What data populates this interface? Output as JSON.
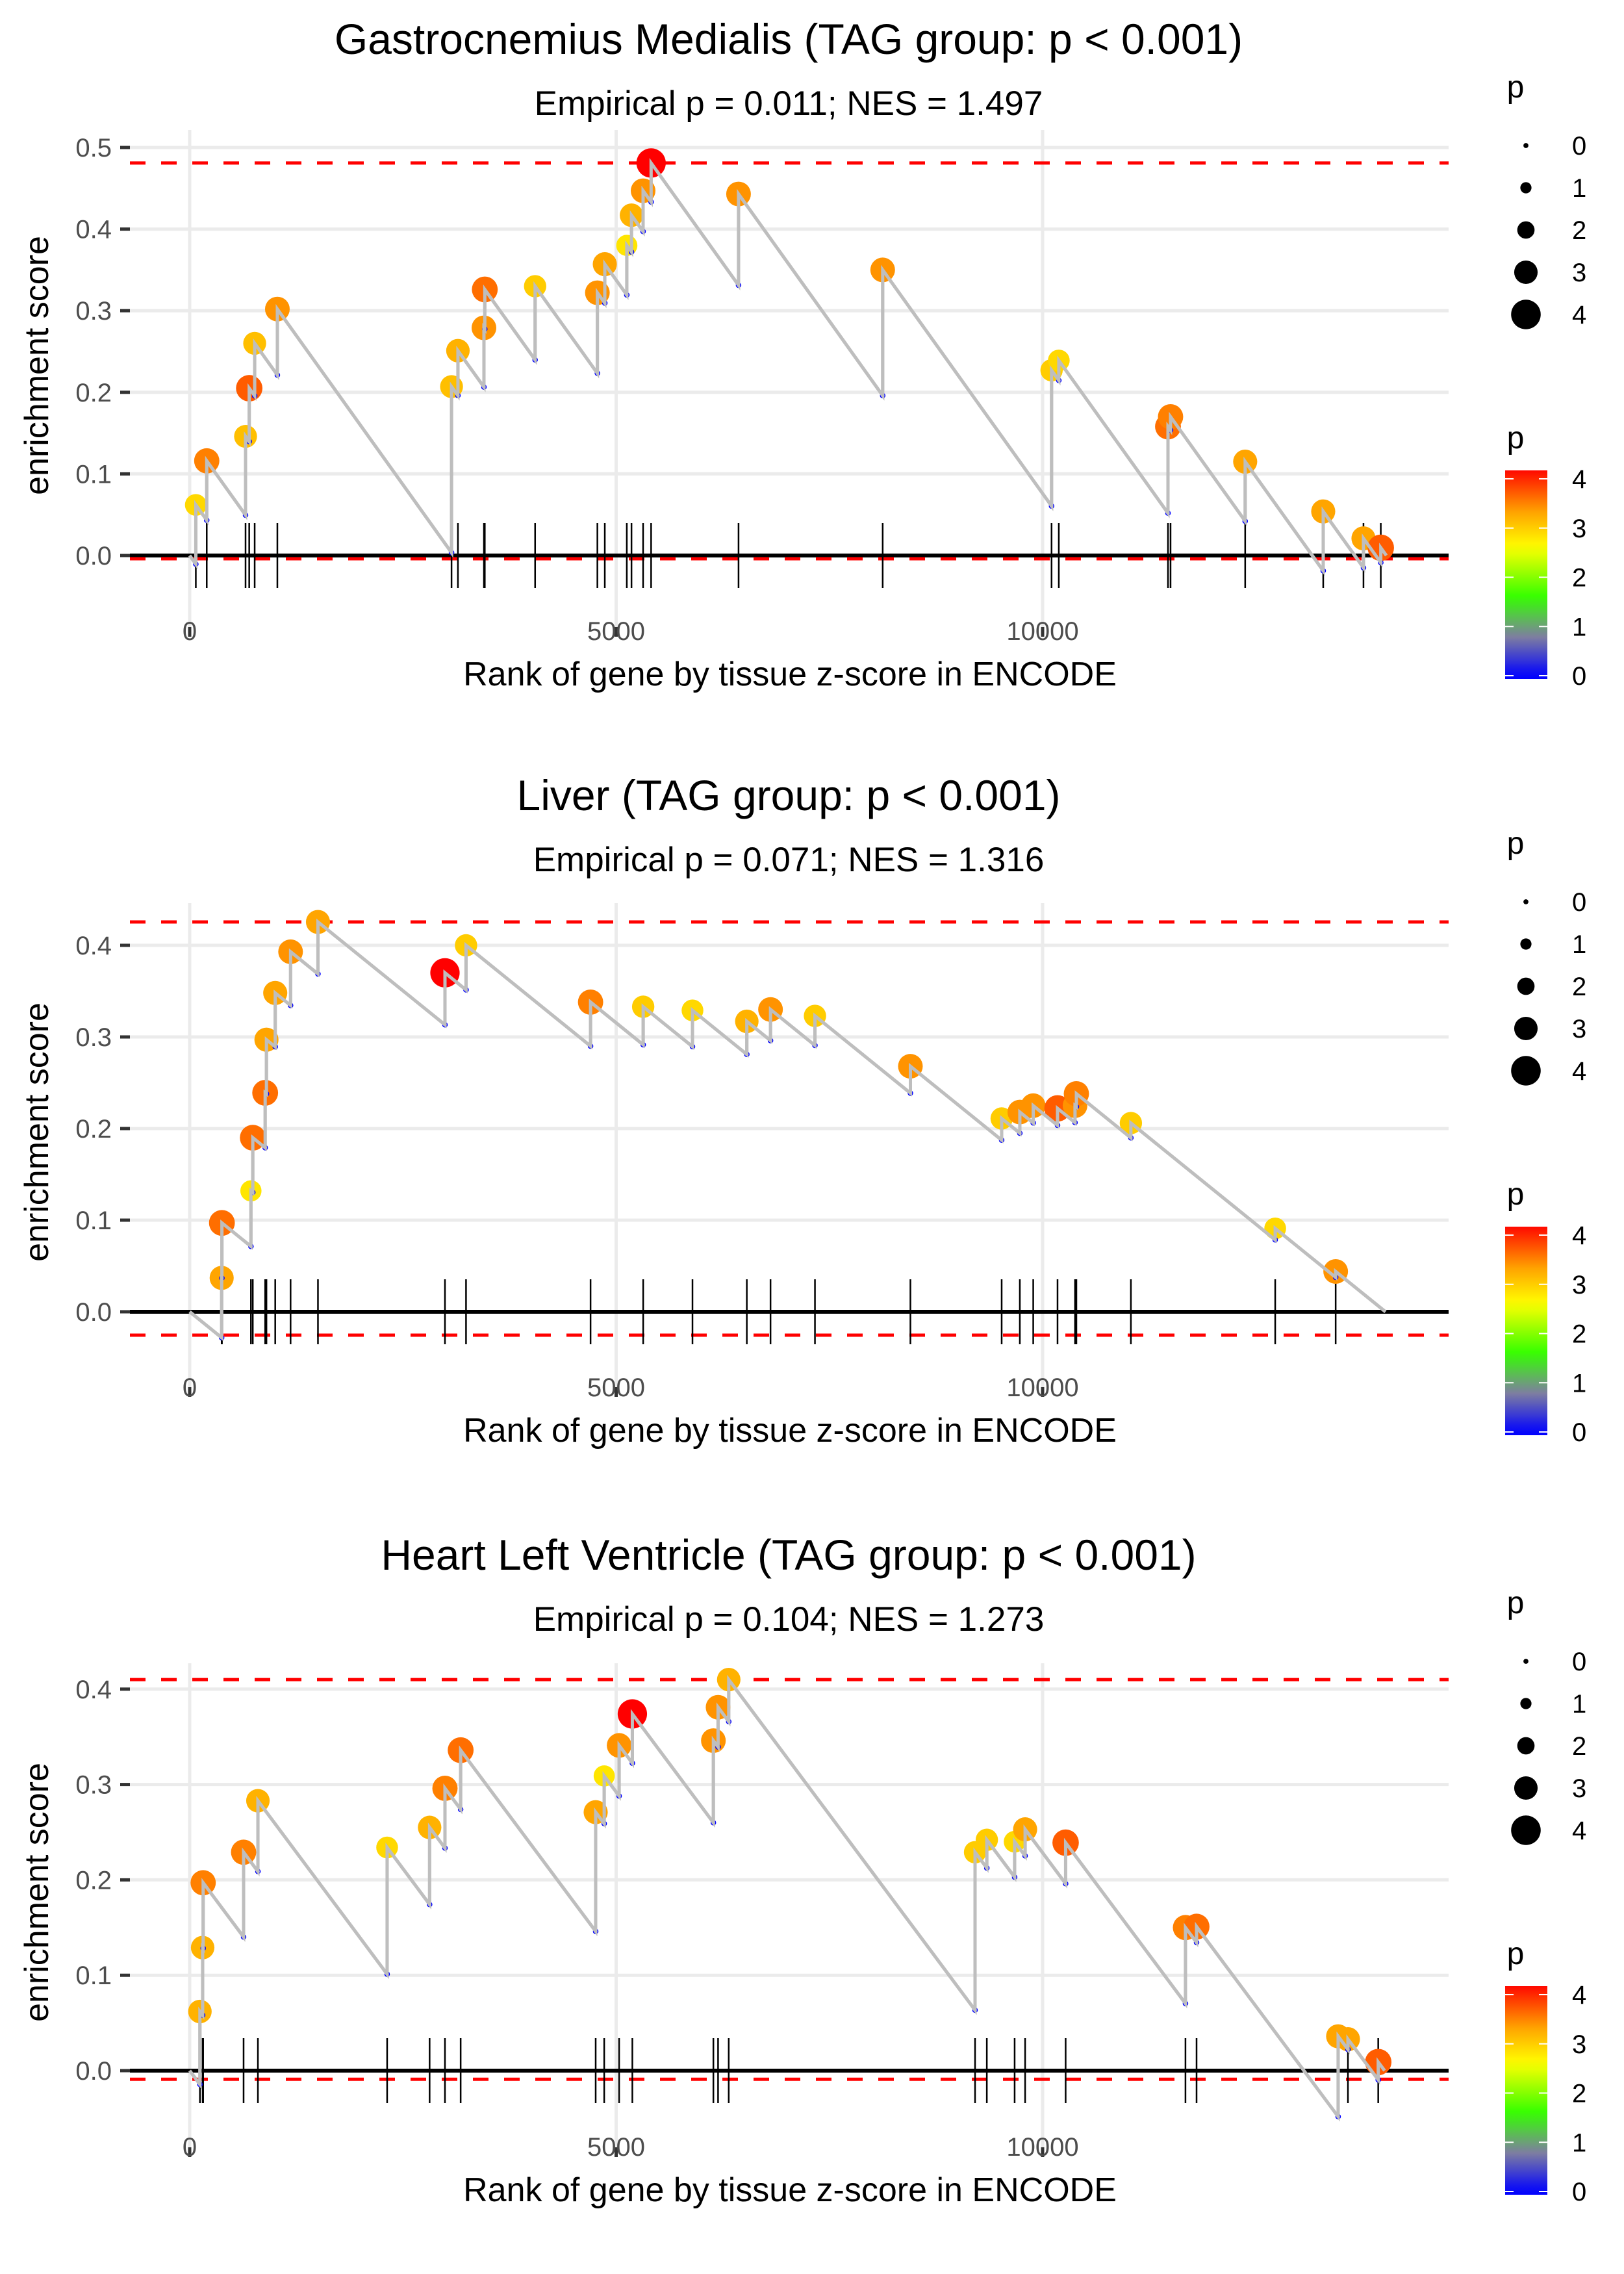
{
  "chart_data": [
    {
      "type": "scatter",
      "title": "Gastrocnemius Medialis (TAG group: p < 0.001)",
      "subtitle": "Empirical p = 0.011; NES = 1.497",
      "xlabel": "Rank of gene by tissue z-score in ENCODE",
      "ylabel": "enrichment score",
      "xlim": [
        -650,
        14700
      ],
      "ylim": [
        -0.05,
        0.5
      ],
      "xticks": [
        0,
        5000,
        10000
      ],
      "xtick_labels": [
        "0",
        "5000",
        "10000"
      ],
      "yticks": [
        0.0,
        0.1,
        0.2,
        0.3,
        0.4,
        0.5
      ],
      "ytick_labels": [
        "0.0",
        "0.1",
        "0.2",
        "0.3",
        "0.4",
        "0.5"
      ],
      "grid": true,
      "n_genes": 14030,
      "max_es": 0.481,
      "min_es": -0.004,
      "points": [
        {
          "x": 72,
          "y": 0.062,
          "p": 2.9
        },
        {
          "x": 200,
          "y": 0.116,
          "p": 3.5
        },
        {
          "x": 655,
          "y": 0.146,
          "p": 3.1
        },
        {
          "x": 698,
          "y": 0.205,
          "p": 3.7
        },
        {
          "x": 762,
          "y": 0.26,
          "p": 3.1
        },
        {
          "x": 1028,
          "y": 0.302,
          "p": 3.4
        },
        {
          "x": 3070,
          "y": 0.207,
          "p": 3.1
        },
        {
          "x": 3145,
          "y": 0.251,
          "p": 3.2
        },
        {
          "x": 3450,
          "y": 0.279,
          "p": 3.4
        },
        {
          "x": 3460,
          "y": 0.326,
          "p": 3.6
        },
        {
          "x": 4050,
          "y": 0.33,
          "p": 3.0
        },
        {
          "x": 4780,
          "y": 0.322,
          "p": 3.4
        },
        {
          "x": 4867,
          "y": 0.357,
          "p": 3.3
        },
        {
          "x": 5125,
          "y": 0.38,
          "p": 2.8
        },
        {
          "x": 5180,
          "y": 0.417,
          "p": 3.2
        },
        {
          "x": 5316,
          "y": 0.447,
          "p": 3.4
        },
        {
          "x": 5410,
          "y": 0.481,
          "p": 4.2
        },
        {
          "x": 6435,
          "y": 0.443,
          "p": 3.4
        },
        {
          "x": 8125,
          "y": 0.35,
          "p": 3.4
        },
        {
          "x": 10105,
          "y": 0.227,
          "p": 3.0
        },
        {
          "x": 10190,
          "y": 0.239,
          "p": 2.9
        },
        {
          "x": 11470,
          "y": 0.158,
          "p": 3.6
        },
        {
          "x": 11500,
          "y": 0.17,
          "p": 3.5
        },
        {
          "x": 12375,
          "y": 0.115,
          "p": 3.3
        },
        {
          "x": 13290,
          "y": 0.054,
          "p": 3.3
        },
        {
          "x": 13762,
          "y": 0.021,
          "p": 3.3
        },
        {
          "x": 13965,
          "y": 0.0095,
          "p": 3.7
        }
      ]
    },
    {
      "type": "scatter",
      "title": "Liver (TAG group: p < 0.001)",
      "subtitle": "Empirical p = 0.071; NES = 1.316",
      "xlabel": "Rank of gene by tissue z-score in ENCODE",
      "ylabel": "enrichment score",
      "xlim": [
        -650,
        14700
      ],
      "ylim": [
        -0.045,
        0.43
      ],
      "xticks": [
        0,
        5000,
        10000
      ],
      "xtick_labels": [
        "0",
        "5000",
        "10000"
      ],
      "yticks": [
        0.0,
        0.1,
        0.2,
        0.3,
        0.4
      ],
      "ytick_labels": [
        "0.0",
        "0.1",
        "0.2",
        "0.3",
        "0.4"
      ],
      "grid": true,
      "n_genes": 14020,
      "max_es": 0.4255,
      "min_es": -0.0255,
      "points": [
        {
          "x": 375,
          "y": 0.037,
          "p": 3.3
        },
        {
          "x": 378,
          "y": 0.097,
          "p": 3.6
        },
        {
          "x": 718,
          "y": 0.132,
          "p": 2.8
        },
        {
          "x": 740,
          "y": 0.19,
          "p": 3.6
        },
        {
          "x": 885,
          "y": 0.239,
          "p": 3.6
        },
        {
          "x": 900,
          "y": 0.297,
          "p": 3.3
        },
        {
          "x": 1003,
          "y": 0.348,
          "p": 3.3
        },
        {
          "x": 1183,
          "y": 0.393,
          "p": 3.4
        },
        {
          "x": 1504,
          "y": 0.4255,
          "p": 3.3
        },
        {
          "x": 2993,
          "y": 0.37,
          "p": 4.2
        },
        {
          "x": 3240,
          "y": 0.4,
          "p": 3.0
        },
        {
          "x": 4700,
          "y": 0.338,
          "p": 3.5
        },
        {
          "x": 5317,
          "y": 0.333,
          "p": 3.0
        },
        {
          "x": 5895,
          "y": 0.329,
          "p": 2.9
        },
        {
          "x": 6532,
          "y": 0.317,
          "p": 3.2
        },
        {
          "x": 6810,
          "y": 0.33,
          "p": 3.4
        },
        {
          "x": 7331,
          "y": 0.323,
          "p": 3.0
        },
        {
          "x": 8450,
          "y": 0.268,
          "p": 3.4
        },
        {
          "x": 9520,
          "y": 0.211,
          "p": 3.0
        },
        {
          "x": 9733,
          "y": 0.218,
          "p": 3.4
        },
        {
          "x": 9890,
          "y": 0.225,
          "p": 3.4
        },
        {
          "x": 10175,
          "y": 0.222,
          "p": 3.7
        },
        {
          "x": 10380,
          "y": 0.225,
          "p": 3.4
        },
        {
          "x": 10396,
          "y": 0.238,
          "p": 3.5
        },
        {
          "x": 11035,
          "y": 0.206,
          "p": 3.0
        },
        {
          "x": 12727,
          "y": 0.091,
          "p": 2.9
        },
        {
          "x": 13436,
          "y": 0.044,
          "p": 3.4
        }
      ]
    },
    {
      "type": "scatter",
      "title": "Heart Left Ventricle (TAG group: p < 0.001)",
      "subtitle": "Empirical p = 0.104; NES = 1.273",
      "xlabel": "Rank of gene by tissue z-score in ENCODE",
      "ylabel": "enrichment score",
      "xlim": [
        -650,
        14700
      ],
      "ylim": [
        -0.03,
        0.415
      ],
      "xticks": [
        0,
        5000,
        10000
      ],
      "xtick_labels": [
        "0",
        "5000",
        "10000"
      ],
      "yticks": [
        0.0,
        0.1,
        0.2,
        0.3,
        0.4
      ],
      "ytick_labels": [
        "0.0",
        "0.1",
        "0.2",
        "0.3",
        "0.4"
      ],
      "grid": true,
      "n_genes": 14010,
      "max_es": 0.41,
      "min_es": -0.009,
      "points": [
        {
          "x": 120,
          "y": 0.062,
          "p": 3.2
        },
        {
          "x": 152,
          "y": 0.129,
          "p": 3.2
        },
        {
          "x": 158,
          "y": 0.197,
          "p": 3.5
        },
        {
          "x": 632,
          "y": 0.229,
          "p": 3.5
        },
        {
          "x": 800,
          "y": 0.283,
          "p": 3.2
        },
        {
          "x": 2315,
          "y": 0.234,
          "p": 2.9
        },
        {
          "x": 2813,
          "y": 0.255,
          "p": 3.2
        },
        {
          "x": 2993,
          "y": 0.296,
          "p": 3.5
        },
        {
          "x": 3177,
          "y": 0.336,
          "p": 3.6
        },
        {
          "x": 4760,
          "y": 0.271,
          "p": 3.3
        },
        {
          "x": 4860,
          "y": 0.309,
          "p": 2.8
        },
        {
          "x": 5035,
          "y": 0.341,
          "p": 3.4
        },
        {
          "x": 5190,
          "y": 0.374,
          "p": 4.2
        },
        {
          "x": 6140,
          "y": 0.346,
          "p": 3.4
        },
        {
          "x": 6195,
          "y": 0.381,
          "p": 3.4
        },
        {
          "x": 6320,
          "y": 0.41,
          "p": 3.2
        },
        {
          "x": 9208,
          "y": 0.229,
          "p": 3.0
        },
        {
          "x": 9346,
          "y": 0.242,
          "p": 3.0
        },
        {
          "x": 9672,
          "y": 0.24,
          "p": 2.9
        },
        {
          "x": 9795,
          "y": 0.253,
          "p": 3.3
        },
        {
          "x": 10270,
          "y": 0.239,
          "p": 3.7
        },
        {
          "x": 11675,
          "y": 0.15,
          "p": 3.5
        },
        {
          "x": 11805,
          "y": 0.151,
          "p": 3.6
        },
        {
          "x": 13465,
          "y": 0.036,
          "p": 3.3
        },
        {
          "x": 13580,
          "y": 0.033,
          "p": 3.3
        },
        {
          "x": 13935,
          "y": 0.009,
          "p": 3.7
        }
      ]
    }
  ],
  "legend": {
    "size_title": "p",
    "size_labels": [
      "0",
      "1",
      "2",
      "3",
      "4"
    ],
    "size_values": [
      0,
      1,
      2,
      3,
      4
    ],
    "color_title": "p",
    "color_labels": [
      "4",
      "3",
      "2",
      "1",
      "0"
    ],
    "color_values": [
      4,
      3,
      2,
      1,
      0
    ],
    "color_scale": [
      "#0000FF",
      "#7f7fa0",
      "#33FF00",
      "#FFFF00",
      "#FFA500",
      "#FF0000"
    ]
  },
  "colors": {
    "curve": "#bebebe",
    "max_min_lines": "#FF0000",
    "zero_line": "#000000",
    "hits": "#000000",
    "trough_marker": "#0000FF"
  }
}
